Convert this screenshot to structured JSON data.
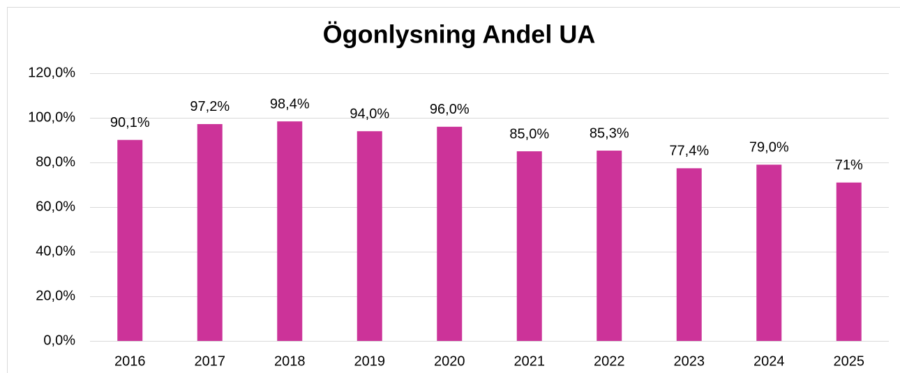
{
  "chart_data": {
    "type": "bar",
    "title": "Ögonlysning Andel UA",
    "categories": [
      "2016",
      "2017",
      "2018",
      "2019",
      "2020",
      "2021",
      "2022",
      "2023",
      "2024",
      "2025"
    ],
    "values": [
      90.1,
      97.2,
      98.4,
      94.0,
      96.0,
      85.0,
      85.3,
      77.4,
      79.0,
      71
    ],
    "value_labels": [
      "90,1%",
      "97,2%",
      "98,4%",
      "94,0%",
      "96,0%",
      "85,0%",
      "85,3%",
      "77,4%",
      "79,0%",
      "71%"
    ],
    "color": "#cc3399",
    "ylim": [
      0,
      120
    ],
    "yticks": [
      {
        "value": 0,
        "label": "0,0%"
      },
      {
        "value": 20,
        "label": "20,0%"
      },
      {
        "value": 40,
        "label": "40,0%"
      },
      {
        "value": 60,
        "label": "60,0%"
      },
      {
        "value": 80,
        "label": "80,0%"
      },
      {
        "value": 100,
        "label": "100,0%"
      },
      {
        "value": 120,
        "label": "120,0%"
      }
    ],
    "grid": true
  }
}
